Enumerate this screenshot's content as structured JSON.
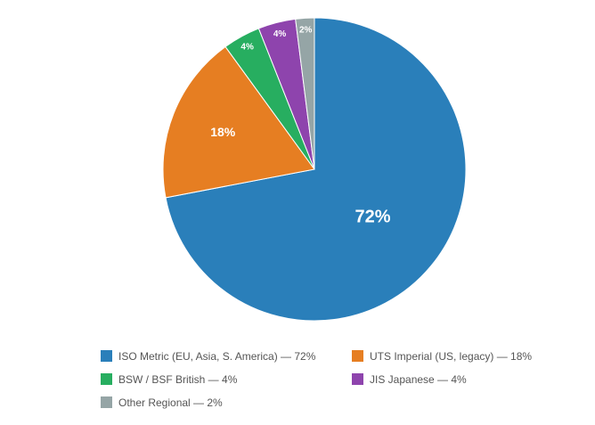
{
  "chart_data": {
    "type": "pie",
    "title": "",
    "categories": [
      "ISO Metric (EU, Asia, S. America)",
      "UTS Imperial (US, legacy)",
      "BSW / BSF British",
      "JIS Japanese",
      "Other Regional"
    ],
    "values": [
      72,
      18,
      4,
      4,
      2
    ],
    "slice_labels": [
      "72%",
      "18%",
      "4%",
      "4%",
      "2%"
    ],
    "colors": [
      "#2a7fba",
      "#e67e22",
      "#27ae60",
      "#8e44ad",
      "#95a5a6"
    ],
    "legend_position": "bottom",
    "start_angle": "top, clockwise"
  },
  "legend": {
    "items": [
      {
        "label": "ISO Metric (EU, Asia, S. America) — 72%",
        "color": "#2a7fba"
      },
      {
        "label": "UTS Imperial (US, legacy) — 18%",
        "color": "#e67e22"
      },
      {
        "label": "BSW / BSF British — 4%",
        "color": "#27ae60"
      },
      {
        "label": "JIS Japanese — 4%",
        "color": "#8e44ad"
      },
      {
        "label": "Other Regional — 2%",
        "color": "#95a5a6"
      }
    ]
  }
}
